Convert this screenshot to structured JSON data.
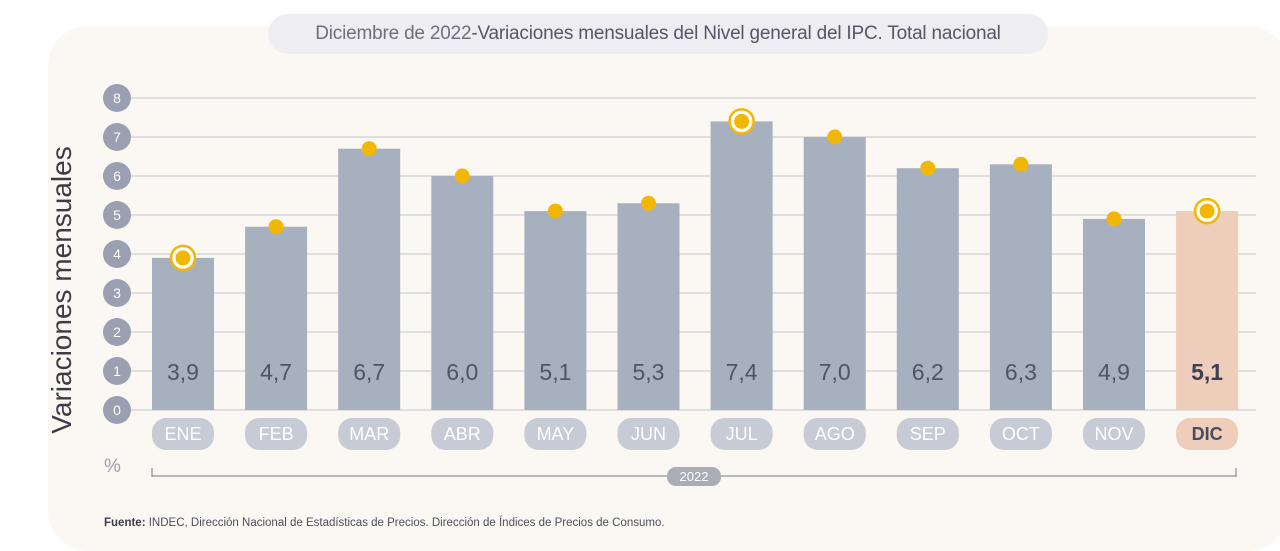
{
  "title": {
    "date": "Diciembre de 2022",
    "separator": " - ",
    "main": "Variaciones mensuales del Nivel general del IPC. Total nacional"
  },
  "ylabel": "Variaciones mensuales",
  "unit": "%",
  "year_label": "2022",
  "source": {
    "label": "Fuente:",
    "text": " INDEC, Dirección Nacional de Estadísticas de Precios. Dirección de Índices de Precios de Consumo."
  },
  "colors": {
    "bar": "#a7b0bf",
    "bar_highlight": "#efcdbb",
    "dot": "#f2b705",
    "tick_circle": "#9a9fb1",
    "grid": "#c4c7cf"
  },
  "chart_data": {
    "type": "bar",
    "categories": [
      "ENE",
      "FEB",
      "MAR",
      "ABR",
      "MAY",
      "JUN",
      "JUL",
      "AGO",
      "SEP",
      "OCT",
      "NOV",
      "DIC"
    ],
    "values": [
      3.9,
      4.7,
      6.7,
      6.0,
      5.1,
      5.3,
      7.4,
      7.0,
      6.2,
      6.3,
      4.9,
      5.1
    ],
    "value_labels": [
      "3,9",
      "4,7",
      "6,7",
      "6,0",
      "5,1",
      "5,3",
      "7,4",
      "7,0",
      "6,2",
      "6,3",
      "4,9",
      "5,1"
    ],
    "ylim": [
      0,
      8
    ],
    "yticks": [
      "0",
      "1",
      "2",
      "3",
      "4",
      "5",
      "6",
      "7",
      "8"
    ],
    "grid": true,
    "highlight_category": "DIC",
    "ringed_points": [
      "ENE",
      "JUL",
      "DIC"
    ]
  }
}
